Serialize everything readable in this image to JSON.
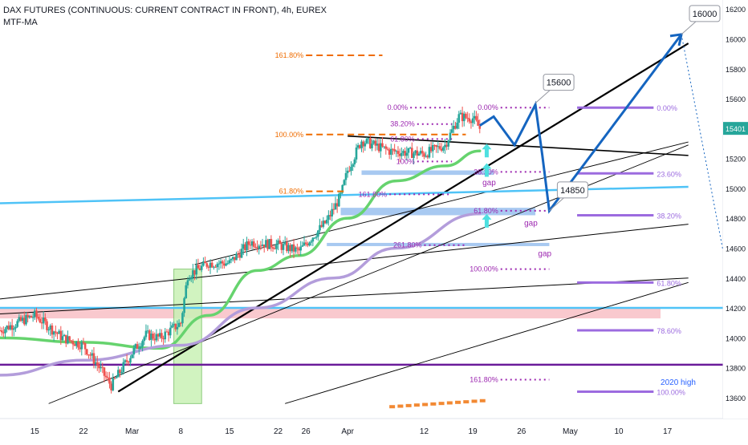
{
  "header": {
    "title": "DAX FUTURES (CONTINUOUS: CURRENT CONTRACT IN FRONT), 4h, EUREX",
    "indicator": "MTF-MA"
  },
  "colors": {
    "black_trend": "#000000",
    "cyan_line": "#4fc3f7",
    "purple_line": "#6a1b9a",
    "projection": "#1565c0",
    "ma_fast": "#66d36e",
    "ma_slow": "#b39ddb",
    "fib_orange": "#ef6c00",
    "fib_purple": "#9c27b0",
    "fib_violet": "#9c6bdf",
    "gap_fill": "#9ec3f0",
    "arrow_cyan": "#4ee0e0",
    "candle_up": "#26a69a",
    "candle_down": "#ef5350",
    "price_tag": "#26a69a"
  },
  "chart_data": {
    "type": "candlestick",
    "y_axis": {
      "range": [
        13460,
        16260
      ],
      "ticks": [
        13600,
        13800,
        14000,
        14200,
        14400,
        14600,
        14800,
        15000,
        15200,
        15400,
        15600,
        15800,
        16000,
        16200
      ],
      "current_price": "15401"
    },
    "x_axis": {
      "ticks": [
        {
          "label": "15",
          "date": "2021-02-15"
        },
        {
          "label": "22",
          "date": "2021-02-22"
        },
        {
          "label": "Mar",
          "date": "2021-03-01"
        },
        {
          "label": "8",
          "date": "2021-03-08"
        },
        {
          "label": "15",
          "date": "2021-03-15"
        },
        {
          "label": "22",
          "date": "2021-03-22"
        },
        {
          "label": "26",
          "date": "2021-03-26"
        },
        {
          "label": "Apr",
          "date": "2021-04-01"
        },
        {
          "label": "12",
          "date": "2021-04-12"
        },
        {
          "label": "19",
          "date": "2021-04-19"
        },
        {
          "label": "26",
          "date": "2021-04-26"
        },
        {
          "label": "May",
          "date": "2021-05-03"
        },
        {
          "label": "10",
          "date": "2021-05-10"
        },
        {
          "label": "17",
          "date": "2021-05-17"
        }
      ]
    },
    "price_path": [
      {
        "date": "2021-02-10",
        "value": 14050
      },
      {
        "date": "2021-02-15",
        "value": 14150
      },
      {
        "date": "2021-02-19",
        "value": 14000
      },
      {
        "date": "2021-02-22",
        "value": 13950
      },
      {
        "date": "2021-02-24",
        "value": 13820
      },
      {
        "date": "2021-02-26",
        "value": 13680
      },
      {
        "date": "2021-03-01",
        "value": 13900
      },
      {
        "date": "2021-03-03",
        "value": 14020
      },
      {
        "date": "2021-03-05",
        "value": 14000
      },
      {
        "date": "2021-03-08",
        "value": 14100
      },
      {
        "date": "2021-03-09",
        "value": 14420
      },
      {
        "date": "2021-03-12",
        "value": 14500
      },
      {
        "date": "2021-03-15",
        "value": 14500
      },
      {
        "date": "2021-03-18",
        "value": 14640
      },
      {
        "date": "2021-03-22",
        "value": 14620
      },
      {
        "date": "2021-03-25",
        "value": 14580
      },
      {
        "date": "2021-03-29",
        "value": 14780
      },
      {
        "date": "2021-03-31",
        "value": 14950
      },
      {
        "date": "2021-04-01",
        "value": 15120
      },
      {
        "date": "2021-04-03",
        "value": 15320
      },
      {
        "date": "2021-04-07",
        "value": 15250
      },
      {
        "date": "2021-04-12",
        "value": 15230
      },
      {
        "date": "2021-04-15",
        "value": 15290
      },
      {
        "date": "2021-04-17",
        "value": 15480
      },
      {
        "date": "2021-04-19",
        "value": 15470
      },
      {
        "date": "2021-04-20",
        "value": 15401
      }
    ],
    "moving_averages": [
      {
        "name": "fast",
        "color_key": "ma_fast",
        "points": [
          {
            "date": "2021-02-10",
            "value": 14000
          },
          {
            "date": "2021-02-22",
            "value": 13970
          },
          {
            "date": "2021-03-05",
            "value": 13930
          },
          {
            "date": "2021-03-12",
            "value": 14150
          },
          {
            "date": "2021-03-19",
            "value": 14450
          },
          {
            "date": "2021-03-25",
            "value": 14550
          },
          {
            "date": "2021-04-01",
            "value": 14800
          },
          {
            "date": "2021-04-08",
            "value": 15050
          },
          {
            "date": "2021-04-15",
            "value": 15150
          },
          {
            "date": "2021-04-20",
            "value": 15250
          }
        ]
      },
      {
        "name": "slow",
        "color_key": "ma_slow",
        "points": [
          {
            "date": "2021-02-10",
            "value": 13750
          },
          {
            "date": "2021-02-22",
            "value": 13850
          },
          {
            "date": "2021-03-08",
            "value": 13950
          },
          {
            "date": "2021-03-19",
            "value": 14200
          },
          {
            "date": "2021-03-30",
            "value": 14400
          },
          {
            "date": "2021-04-08",
            "value": 14600
          },
          {
            "date": "2021-04-20",
            "value": 14830
          }
        ]
      }
    ],
    "trend_lines": [
      {
        "color_key": "black_trend",
        "width": 2.2,
        "from": {
          "date": "2021-02-27",
          "value": 13640
        },
        "to": {
          "date": "2021-05-20",
          "value": 15970
        }
      },
      {
        "color_key": "black_trend",
        "width": 1.6,
        "from": {
          "date": "2021-04-01",
          "value": 15350
        },
        "to": {
          "date": "2021-05-20",
          "value": 15220
        }
      },
      {
        "color_key": "black_trend",
        "width": 1.0,
        "from": {
          "date": "2021-02-10",
          "value": 14260
        },
        "to": {
          "date": "2021-05-20",
          "value": 14760
        }
      },
      {
        "color_key": "black_trend",
        "width": 1.0,
        "from": {
          "date": "2021-02-10",
          "value": 14160
        },
        "to": {
          "date": "2021-05-20",
          "value": 14400
        }
      },
      {
        "color_key": "black_trend",
        "width": 0.9,
        "from": {
          "date": "2021-02-17",
          "value": 13560
        },
        "to": {
          "date": "2021-05-20",
          "value": 15290
        }
      },
      {
        "color_key": "black_trend",
        "width": 0.9,
        "from": {
          "date": "2021-03-23",
          "value": 13560
        },
        "to": {
          "date": "2021-05-20",
          "value": 14370
        }
      },
      {
        "color_key": "black_trend",
        "width": 0.9,
        "from": {
          "date": "2021-03-10",
          "value": 14490
        },
        "to": {
          "date": "2021-05-20",
          "value": 15310
        }
      },
      {
        "color_key": "cyan_line",
        "width": 2.5,
        "from": {
          "date": "2021-02-10",
          "value": 14900
        },
        "to": {
          "date": "2021-05-20",
          "value": 15010
        }
      }
    ],
    "horizontal_lines": [
      {
        "value": 14200,
        "color_key": "cyan_line",
        "width": 2.5
      },
      {
        "value": 13820,
        "color_key": "purple_line",
        "width": 2.5
      }
    ],
    "zones": [
      {
        "kind": "support-band",
        "from": "2021-02-10",
        "to": "2021-05-16",
        "low": 14130,
        "high": 14200,
        "fill": "#f8bfc6"
      },
      {
        "kind": "highlight",
        "from": "2021-03-07",
        "to": "2021-03-11",
        "low": 13560,
        "high": 14460,
        "fill": "#c9f2b6"
      }
    ],
    "gaps": [
      {
        "label": "gap",
        "from": "2021-04-03",
        "to": "2021-04-22",
        "low": 15090,
        "high": 15120
      },
      {
        "label": "gap",
        "from": "2021-03-31",
        "to": "2021-04-28",
        "low": 14820,
        "high": 14870
      },
      {
        "label": "gap",
        "from": "2021-03-29",
        "to": "2021-04-30",
        "low": 14615,
        "high": 14635
      }
    ],
    "fib_levels": [
      {
        "label": "161.80%",
        "value": 15890,
        "from": "2021-03-26",
        "to": "2021-04-06",
        "style": "dash",
        "color_key": "fib_orange"
      },
      {
        "label": "100.00%",
        "value": 15360,
        "from": "2021-03-26",
        "to": "2021-04-18",
        "style": "dash",
        "color_key": "fib_orange"
      },
      {
        "label": "61.80%",
        "value": 14980,
        "from": "2021-03-26",
        "to": "2021-04-01",
        "style": "dash",
        "color_key": "fib_orange"
      },
      {
        "label": "0.00%",
        "value": 15540,
        "from": "2021-04-10",
        "to": "2021-04-16",
        "style": "dot",
        "color_key": "fib_purple"
      },
      {
        "label": "38.20%",
        "value": 15430,
        "from": "2021-04-11",
        "to": "2021-04-16",
        "style": "dot",
        "color_key": "fib_purple"
      },
      {
        "label": "61.80%",
        "value": 15330,
        "from": "2021-04-11",
        "to": "2021-04-16",
        "style": "dot",
        "color_key": "fib_purple"
      },
      {
        "label": "100%",
        "value": 15180,
        "from": "2021-04-11",
        "to": "2021-04-16",
        "style": "dot",
        "color_key": "fib_purple"
      },
      {
        "label": "161.80%",
        "value": 14960,
        "from": "2021-04-07",
        "to": "2021-04-16",
        "style": "dot",
        "color_key": "fib_purple"
      },
      {
        "label": "261.80%",
        "value": 14620,
        "from": "2021-04-12",
        "to": "2021-04-18",
        "style": "dot",
        "color_key": "fib_purple"
      },
      {
        "label": "0.00%",
        "value": 15540,
        "from": "2021-04-23",
        "to": "2021-04-30",
        "style": "dot",
        "color_key": "fib_purple"
      },
      {
        "label": "38.20%",
        "value": 15110,
        "from": "2021-04-23",
        "to": "2021-04-30",
        "style": "dot",
        "color_key": "fib_purple"
      },
      {
        "label": "61.80%",
        "value": 14850,
        "from": "2021-04-23",
        "to": "2021-04-30",
        "style": "dot",
        "color_key": "fib_purple"
      },
      {
        "label": "100.00%",
        "value": 14460,
        "from": "2021-04-23",
        "to": "2021-04-30",
        "style": "dot",
        "color_key": "fib_purple"
      },
      {
        "label": "161.80%",
        "value": 13720,
        "from": "2021-04-23",
        "to": "2021-04-30",
        "style": "dot",
        "color_key": "fib_purple"
      },
      {
        "label": "0.00%",
        "value": 15540,
        "from": "2021-05-04",
        "to": "2021-05-15",
        "style": "solid",
        "color_key": "fib_violet"
      },
      {
        "label": "23.60%",
        "value": 15100,
        "from": "2021-05-04",
        "to": "2021-05-15",
        "style": "solid",
        "color_key": "fib_violet"
      },
      {
        "label": "38.20%",
        "value": 14820,
        "from": "2021-05-04",
        "to": "2021-05-15",
        "style": "solid",
        "color_key": "fib_violet"
      },
      {
        "label": "61.80%",
        "value": 14370,
        "from": "2021-05-04",
        "to": "2021-05-15",
        "style": "solid",
        "color_key": "fib_violet"
      },
      {
        "label": "78.60%",
        "value": 14050,
        "from": "2021-05-04",
        "to": "2021-05-15",
        "style": "solid",
        "color_key": "fib_violet"
      },
      {
        "label": "100.00%",
        "value": 13640,
        "from": "2021-05-04",
        "to": "2021-05-15",
        "style": "solid",
        "color_key": "fib_violet"
      }
    ],
    "projection_path": [
      {
        "date": "2021-04-20",
        "value": 15420
      },
      {
        "date": "2021-04-22",
        "value": 15480
      },
      {
        "date": "2021-04-25",
        "value": 15290
      },
      {
        "date": "2021-04-28",
        "value": 15560
      },
      {
        "date": "2021-04-29",
        "value": 15220
      },
      {
        "date": "2021-04-30",
        "value": 14850
      },
      {
        "date": "2021-05-19",
        "value": 16030
      }
    ],
    "projection_tail": [
      {
        "date": "2021-05-19",
        "value": 16030
      },
      {
        "date": "2021-05-25",
        "value": 14580
      }
    ],
    "arrows": [
      {
        "date": "2021-04-21",
        "value": 15250
      },
      {
        "date": "2021-04-21",
        "value": 15120
      },
      {
        "date": "2021-04-21",
        "value": 14780
      }
    ],
    "callouts": [
      {
        "label": "16000",
        "anchor_date": "2021-05-19",
        "anchor_value": 16030
      },
      {
        "label": "15600",
        "anchor_date": "2021-04-28",
        "anchor_value": 15570
      },
      {
        "label": "14850",
        "anchor_date": "2021-04-30",
        "anchor_value": 14850
      }
    ],
    "annotations": [
      {
        "label": "2020 high",
        "date": "2021-05-16",
        "value": 13760
      }
    ],
    "volume_hint": [
      {
        "date": "2021-04-07",
        "value": 13550
      },
      {
        "date": "2021-04-20",
        "value": 13590
      }
    ]
  }
}
